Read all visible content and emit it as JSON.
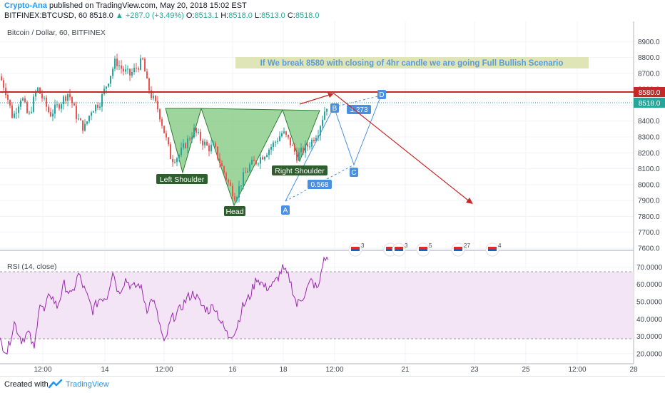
{
  "header": {
    "author": "Crypto-Ana",
    "published_text": "published on TradingView.com, May 20, 2018 15:02 EST",
    "symbol": "BITFINEX:BTCUSD, 60",
    "price": "8518.0",
    "change": "▲ +287.0 (+3.49%)",
    "ohlc": {
      "o_label": "O:",
      "o": "8513.1",
      "h_label": "H:",
      "h": "8518.0",
      "l_label": "L:",
      "l": "8513.0",
      "c_label": "C:",
      "c": "8518.0"
    }
  },
  "footer": {
    "created_with": "Created with",
    "brand": "TradingView"
  },
  "colors": {
    "up": "#26a69a",
    "down": "#ef5350",
    "resistance": "#c62828",
    "pattern_fill": "#7cc77c",
    "harmonic": "#4a90e2",
    "rsi": "#9c27b0",
    "rsi_band": "#f3e5f5"
  },
  "chart_data": [
    {
      "type": "candlestick",
      "title": "Bitcoin / Dollar, 60, BITFINEX",
      "ylim": [
        7600,
        9000
      ],
      "y_ticks": [
        "8900.0",
        "8800.0",
        "8700.0",
        "8600.0",
        "8500.0",
        "8400.0",
        "8300.0",
        "8200.0",
        "8100.0",
        "8000.0",
        "7900.0",
        "7800.0",
        "7700.0",
        "7600.0"
      ],
      "x_ticks": [
        "12:00",
        "14",
        "12:00",
        "16",
        "18",
        "12:00",
        "21",
        "23",
        "25",
        "12:00",
        "28"
      ],
      "price_labels": {
        "resistance": "8580.0",
        "last": "8518.0"
      },
      "resistance_level": 8580,
      "last_price": 8518,
      "anchor_points": [
        [
          0,
          8680
        ],
        [
          8,
          8590
        ],
        [
          18,
          8420
        ],
        [
          30,
          8560
        ],
        [
          40,
          8420
        ],
        [
          52,
          8610
        ],
        [
          60,
          8540
        ],
        [
          70,
          8440
        ],
        [
          82,
          8500
        ],
        [
          96,
          8580
        ],
        [
          108,
          8420
        ],
        [
          118,
          8350
        ],
        [
          128,
          8470
        ],
        [
          140,
          8520
        ],
        [
          152,
          8660
        ],
        [
          162,
          8780
        ],
        [
          172,
          8720
        ],
        [
          182,
          8690
        ],
        [
          192,
          8740
        ],
        [
          200,
          8780
        ],
        [
          206,
          8640
        ],
        [
          212,
          8560
        ],
        [
          222,
          8470
        ],
        [
          232,
          8300
        ],
        [
          240,
          8160
        ],
        [
          250,
          8180
        ],
        [
          262,
          8270
        ],
        [
          272,
          8340
        ],
        [
          282,
          8280
        ],
        [
          292,
          8230
        ],
        [
          300,
          8240
        ],
        [
          310,
          8120
        ],
        [
          320,
          8010
        ],
        [
          330,
          7920
        ],
        [
          340,
          8040
        ],
        [
          350,
          8120
        ],
        [
          360,
          8150
        ],
        [
          372,
          8200
        ],
        [
          384,
          8260
        ],
        [
          396,
          8330
        ],
        [
          406,
          8270
        ],
        [
          416,
          8180
        ],
        [
          426,
          8220
        ],
        [
          436,
          8270
        ],
        [
          446,
          8340
        ],
        [
          456,
          8480
        ],
        [
          460,
          8518
        ]
      ],
      "annotations": {
        "note": "If We break 8580 with closing of 4hr candle we are going Full Bullish Scenario",
        "left_shoulder": "Left Shoulder",
        "head": "Head",
        "right_shoulder": "Right Shoulder",
        "harmonic": {
          "A": "A",
          "B": "B",
          "C": "C",
          "D": "D",
          "ratio_ab": "0.568",
          "ratio_bc": "1.273"
        },
        "event_markers": [
          "3",
          "2",
          "3",
          "5",
          "27",
          "4"
        ]
      }
    },
    {
      "type": "line",
      "title": "RSI (14, close)",
      "ylim": [
        15,
        78
      ],
      "y_ticks": [
        "70.0000",
        "60.0000",
        "50.0000",
        "40.0000",
        "30.0000",
        "20.0000"
      ],
      "bands": [
        30,
        70
      ],
      "anchor_points": [
        [
          0,
          27
        ],
        [
          10,
          21
        ],
        [
          20,
          38
        ],
        [
          30,
          28
        ],
        [
          40,
          32
        ],
        [
          48,
          22
        ],
        [
          55,
          50
        ],
        [
          62,
          44
        ],
        [
          70,
          55
        ],
        [
          80,
          47
        ],
        [
          90,
          60
        ],
        [
          100,
          53
        ],
        [
          110,
          66
        ],
        [
          120,
          55
        ],
        [
          130,
          45
        ],
        [
          140,
          52
        ],
        [
          150,
          53
        ],
        [
          158,
          68
        ],
        [
          166,
          55
        ],
        [
          176,
          63
        ],
        [
          186,
          58
        ],
        [
          196,
          60
        ],
        [
          206,
          46
        ],
        [
          214,
          52
        ],
        [
          222,
          40
        ],
        [
          230,
          25
        ],
        [
          240,
          40
        ],
        [
          250,
          44
        ],
        [
          262,
          52
        ],
        [
          272,
          55
        ],
        [
          282,
          48
        ],
        [
          292,
          45
        ],
        [
          300,
          48
        ],
        [
          310,
          38
        ],
        [
          320,
          30
        ],
        [
          330,
          33
        ],
        [
          340,
          47
        ],
        [
          350,
          53
        ],
        [
          360,
          64
        ],
        [
          372,
          58
        ],
        [
          384,
          60
        ],
        [
          396,
          69
        ],
        [
          406,
          63
        ],
        [
          416,
          48
        ],
        [
          426,
          54
        ],
        [
          436,
          62
        ],
        [
          446,
          57
        ],
        [
          452,
          72
        ],
        [
          456,
          75
        ],
        [
          460,
          74
        ]
      ]
    }
  ]
}
